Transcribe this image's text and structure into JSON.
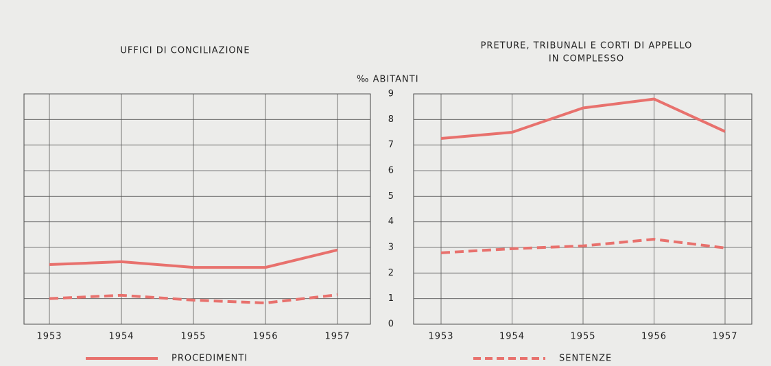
{
  "chart_data": [
    {
      "type": "line",
      "title": "UFFICI DI CONCILIAZIONE",
      "x": [
        1953,
        1954,
        1955,
        1956,
        1957
      ],
      "xlim": [
        1953,
        1957
      ],
      "ylim": [
        0,
        9
      ],
      "yticks": [
        0,
        1,
        2,
        3,
        4,
        5,
        6,
        7,
        8,
        9
      ],
      "grid": true,
      "series": [
        {
          "name": "PROCEDIMENTI",
          "color": "#e8716d",
          "style": "solid",
          "values": [
            2.33,
            2.44,
            2.22,
            2.22,
            2.9
          ]
        },
        {
          "name": "SENTENZE",
          "color": "#e8716d",
          "style": "dashed",
          "values": [
            1.0,
            1.13,
            0.94,
            0.83,
            1.15
          ]
        }
      ]
    },
    {
      "type": "line",
      "title": "PRETURE, TRIBUNALI E CORTI DI APPELLO",
      "subtitle": "IN COMPLESSO",
      "ylabel": "‰ ABITANTI",
      "x": [
        1953,
        1954,
        1955,
        1956,
        1957
      ],
      "xlim": [
        1953,
        1957
      ],
      "ylim": [
        0,
        9
      ],
      "yticks": [
        0,
        1,
        2,
        3,
        4,
        5,
        6,
        7,
        8,
        9
      ],
      "grid": true,
      "series": [
        {
          "color": "#e8716d",
          "style": "solid",
          "values": [
            7.26,
            7.5,
            8.45,
            8.8,
            7.53
          ]
        },
        {
          "color": "#e8716d",
          "style": "dashed",
          "values": [
            2.79,
            2.95,
            3.06,
            3.32,
            2.98
          ]
        }
      ]
    }
  ]
}
